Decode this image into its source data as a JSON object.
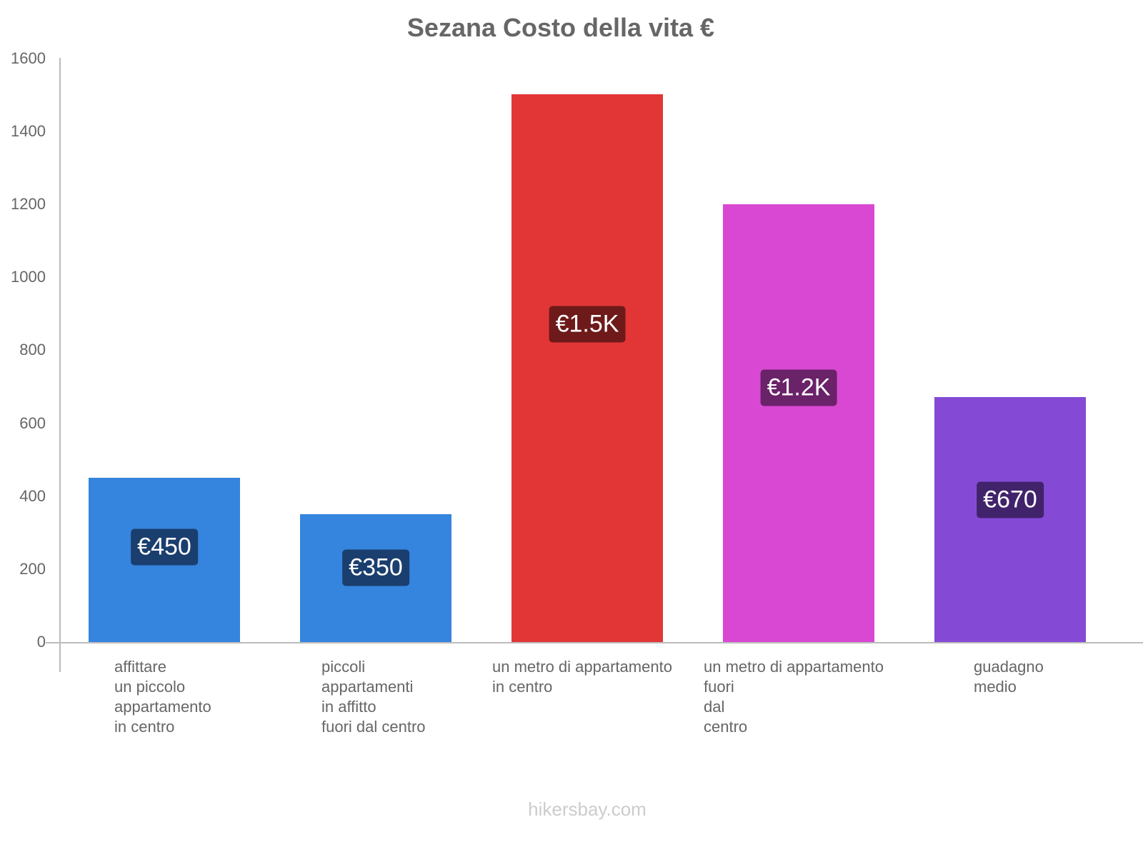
{
  "title": "Sezana Costo della vita €",
  "footer": "hikersbay.com",
  "y_axis": {
    "ticks": [
      "1600",
      "1400",
      "1200",
      "1000",
      "800",
      "600",
      "400",
      "200",
      "0"
    ]
  },
  "bars": [
    {
      "label": "affittare\nun piccolo\nappartamento\nin centro",
      "value_label": "€450",
      "value": 450,
      "color": "#3584de",
      "label_bg": "#1a3e6e"
    },
    {
      "label": "piccoli\nappartamenti\nin affitto\nfuori dal centro",
      "value_label": "€350",
      "value": 350,
      "color": "#3584de",
      "label_bg": "#1a3e6e"
    },
    {
      "label": "un metro di appartamento\nin centro",
      "value_label": "€1.5K",
      "value": 1500,
      "color": "#e23636",
      "label_bg": "#6e1a1a"
    },
    {
      "label": "un metro di appartamento\nfuori\ndal\ncentro",
      "value_label": "€1.2K",
      "value": 1200,
      "color": "#d848d2",
      "label_bg": "#6a2269"
    },
    {
      "label": "guadagno\nmedio",
      "value_label": "€670",
      "value": 670,
      "color": "#844ad6",
      "label_bg": "#40236b"
    }
  ],
  "chart_data": {
    "type": "bar",
    "title": "Sezana Costo della vita €",
    "categories": [
      "affittare un piccolo appartamento in centro",
      "piccoli appartamenti in affitto fuori dal centro",
      "un metro di appartamento in centro",
      "un metro di appartamento fuori dal centro",
      "guadagno medio"
    ],
    "values": [
      450,
      350,
      1500,
      1200,
      670
    ],
    "data_labels": [
      "€450",
      "€350",
      "€1.5K",
      "€1.2K",
      "€670"
    ],
    "colors": [
      "#3584de",
      "#3584de",
      "#e23636",
      "#d848d2",
      "#844ad6"
    ],
    "xlabel": "",
    "ylabel": "",
    "ylim": [
      0,
      1600
    ],
    "yticks": [
      0,
      200,
      400,
      600,
      800,
      1000,
      1200,
      1400,
      1600
    ],
    "grid": false,
    "legend": "none"
  }
}
